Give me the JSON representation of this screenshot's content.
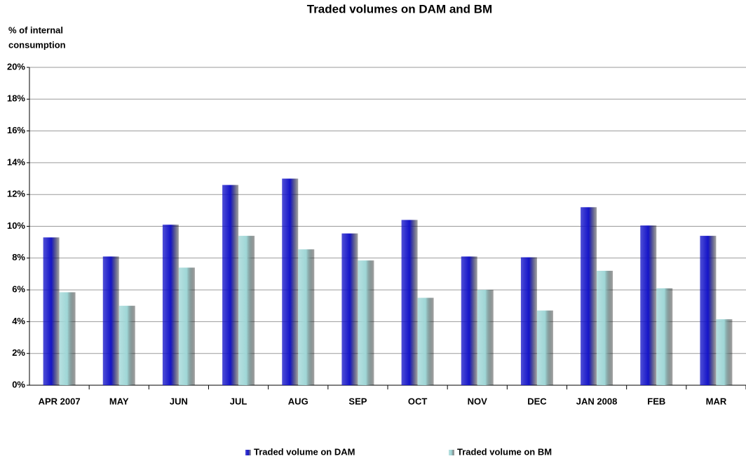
{
  "chart_data": {
    "type": "bar",
    "title": "Traded volumes on DAM and BM",
    "y_label": [
      "% of internal",
      "consumption"
    ],
    "categories": [
      "APR 2007",
      "MAY",
      "JUN",
      "JUL",
      "AUG",
      "SEP",
      "OCT",
      "NOV",
      "DEC",
      "JAN 2008",
      "FEB",
      "MAR"
    ],
    "series": [
      {
        "name": "Traded volume on DAM",
        "color": "#1414c8",
        "values": [
          9.3,
          8.1,
          10.1,
          12.6,
          13.0,
          9.55,
          10.4,
          8.1,
          8.05,
          11.2,
          10.05,
          9.4
        ]
      },
      {
        "name": "Traded volume on BM",
        "color": "#9fd6d6",
        "values": [
          5.85,
          5.0,
          7.4,
          9.4,
          8.55,
          7.85,
          5.5,
          6.0,
          4.7,
          7.2,
          6.1,
          4.15
        ]
      }
    ],
    "ylim": [
      0,
      20
    ],
    "yticks": [
      {
        "value": 0,
        "label": "0%"
      },
      {
        "value": 2,
        "label": "2%"
      },
      {
        "value": 4,
        "label": "4%"
      },
      {
        "value": 6,
        "label": "6%"
      },
      {
        "value": 8,
        "label": "8%"
      },
      {
        "value": 10,
        "label": "10%"
      },
      {
        "value": 12,
        "label": "12%"
      },
      {
        "value": 14,
        "label": "14%"
      },
      {
        "value": 16,
        "label": "16%"
      },
      {
        "value": 18,
        "label": "18%"
      },
      {
        "value": 20,
        "label": "20%"
      }
    ],
    "grid": true,
    "legend": "bottom"
  }
}
